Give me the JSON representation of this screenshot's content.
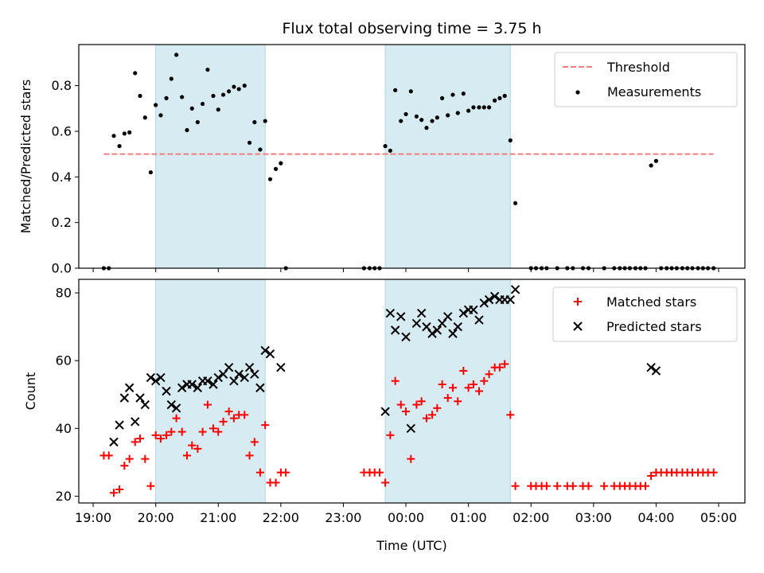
{
  "chart_data": [
    {
      "type": "scatter",
      "title": "Flux total observing time = 3.75 h",
      "xlabel": "",
      "ylabel": "Matched/Predicted stars",
      "xlim": [
        18.77,
        29.42
      ],
      "ylim": [
        0,
        0.98
      ],
      "yticks": [
        0.0,
        0.2,
        0.4,
        0.6,
        0.8
      ],
      "ytick_labels": [
        "0.0",
        "0.2",
        "0.4",
        "0.6",
        "0.8"
      ],
      "legend_position": "top-right",
      "shaded_regions": [
        [
          20.0,
          21.75
        ],
        [
          23.67,
          25.67
        ]
      ],
      "threshold": {
        "name": "Threshold",
        "value": 0.5,
        "x_range": [
          19.17,
          28.92
        ],
        "color": "#f07f7f"
      },
      "series": [
        {
          "name": "Measurements",
          "color": "#000000",
          "points": [
            [
              19.17,
              0.0
            ],
            [
              19.25,
              0.0
            ],
            [
              19.33,
              0.58
            ],
            [
              19.42,
              0.535
            ],
            [
              19.5,
              0.59
            ],
            [
              19.58,
              0.595
            ],
            [
              19.67,
              0.855
            ],
            [
              19.75,
              0.755
            ],
            [
              19.83,
              0.66
            ],
            [
              19.92,
              0.42
            ],
            [
              20.0,
              0.715
            ],
            [
              20.08,
              0.67
            ],
            [
              20.17,
              0.745
            ],
            [
              20.25,
              0.83
            ],
            [
              20.33,
              0.935
            ],
            [
              20.42,
              0.75
            ],
            [
              20.5,
              0.605
            ],
            [
              20.58,
              0.7
            ],
            [
              20.67,
              0.64
            ],
            [
              20.75,
              0.72
            ],
            [
              20.83,
              0.87
            ],
            [
              20.92,
              0.755
            ],
            [
              21.0,
              0.695
            ],
            [
              21.08,
              0.76
            ],
            [
              21.17,
              0.775
            ],
            [
              21.25,
              0.795
            ],
            [
              21.33,
              0.785
            ],
            [
              21.42,
              0.8
            ],
            [
              21.5,
              0.55
            ],
            [
              21.58,
              0.64
            ],
            [
              21.67,
              0.52
            ],
            [
              21.75,
              0.645
            ],
            [
              21.83,
              0.39
            ],
            [
              21.92,
              0.435
            ],
            [
              22.0,
              0.46
            ],
            [
              22.08,
              0.0
            ],
            [
              23.33,
              0.0
            ],
            [
              23.42,
              0.0
            ],
            [
              23.5,
              0.0
            ],
            [
              23.58,
              0.0
            ],
            [
              23.67,
              0.535
            ],
            [
              23.75,
              0.515
            ],
            [
              23.83,
              0.78
            ],
            [
              23.92,
              0.645
            ],
            [
              24.0,
              0.675
            ],
            [
              24.08,
              0.775
            ],
            [
              24.17,
              0.665
            ],
            [
              24.25,
              0.65
            ],
            [
              24.33,
              0.615
            ],
            [
              24.42,
              0.645
            ],
            [
              24.5,
              0.66
            ],
            [
              24.58,
              0.745
            ],
            [
              24.67,
              0.67
            ],
            [
              24.75,
              0.76
            ],
            [
              24.83,
              0.68
            ],
            [
              24.92,
              0.765
            ],
            [
              25.0,
              0.69
            ],
            [
              25.08,
              0.705
            ],
            [
              25.17,
              0.705
            ],
            [
              25.25,
              0.705
            ],
            [
              25.33,
              0.705
            ],
            [
              25.42,
              0.735
            ],
            [
              25.5,
              0.745
            ],
            [
              25.58,
              0.755
            ],
            [
              25.67,
              0.56
            ],
            [
              25.75,
              0.285
            ],
            [
              26.0,
              0.0
            ],
            [
              26.08,
              0.0
            ],
            [
              26.17,
              0.0
            ],
            [
              26.25,
              0.0
            ],
            [
              26.42,
              0.0
            ],
            [
              26.58,
              0.0
            ],
            [
              26.67,
              0.0
            ],
            [
              26.83,
              0.0
            ],
            [
              26.92,
              0.0
            ],
            [
              27.17,
              0.0
            ],
            [
              27.33,
              0.0
            ],
            [
              27.42,
              0.0
            ],
            [
              27.5,
              0.0
            ],
            [
              27.58,
              0.0
            ],
            [
              27.67,
              0.0
            ],
            [
              27.75,
              0.0
            ],
            [
              27.83,
              0.0
            ],
            [
              27.92,
              0.45
            ],
            [
              28.0,
              0.47
            ],
            [
              28.08,
              0.0
            ],
            [
              28.17,
              0.0
            ],
            [
              28.25,
              0.0
            ],
            [
              28.33,
              0.0
            ],
            [
              28.42,
              0.0
            ],
            [
              28.5,
              0.0
            ],
            [
              28.58,
              0.0
            ],
            [
              28.67,
              0.0
            ],
            [
              28.75,
              0.0
            ],
            [
              28.83,
              0.0
            ],
            [
              28.92,
              0.0
            ]
          ]
        }
      ]
    },
    {
      "type": "scatter",
      "title": "",
      "xlabel": "Time (UTC)",
      "ylabel": "Count",
      "xlim": [
        18.77,
        29.42
      ],
      "ylim": [
        18,
        84
      ],
      "yticks": [
        20,
        40,
        60,
        80
      ],
      "ytick_labels": [
        "20",
        "40",
        "60",
        "80"
      ],
      "xticks": [
        19,
        20,
        21,
        22,
        23,
        24,
        25,
        26,
        27,
        28,
        29
      ],
      "xtick_labels": [
        "19:00",
        "20:00",
        "21:00",
        "22:00",
        "23:00",
        "00:00",
        "01:00",
        "02:00",
        "03:00",
        "04:00",
        "05:00"
      ],
      "legend_position": "top-right",
      "shaded_regions": [
        [
          20.0,
          21.75
        ],
        [
          23.67,
          25.67
        ]
      ],
      "series": [
        {
          "name": "Matched stars",
          "marker": "plus",
          "color": "#ff0000",
          "points": [
            [
              19.17,
              32
            ],
            [
              19.25,
              32
            ],
            [
              19.33,
              21
            ],
            [
              19.42,
              22
            ],
            [
              19.5,
              29
            ],
            [
              19.58,
              31
            ],
            [
              19.67,
              36
            ],
            [
              19.75,
              37
            ],
            [
              19.83,
              31
            ],
            [
              19.92,
              23
            ],
            [
              20.0,
              38
            ],
            [
              20.08,
              37
            ],
            [
              20.17,
              38
            ],
            [
              20.25,
              39
            ],
            [
              20.33,
              43
            ],
            [
              20.42,
              39
            ],
            [
              20.5,
              32
            ],
            [
              20.58,
              35
            ],
            [
              20.67,
              34
            ],
            [
              20.75,
              39
            ],
            [
              20.83,
              47
            ],
            [
              20.92,
              40
            ],
            [
              21.0,
              39
            ],
            [
              21.08,
              42
            ],
            [
              21.17,
              45
            ],
            [
              21.25,
              43
            ],
            [
              21.33,
              44
            ],
            [
              21.42,
              44
            ],
            [
              21.5,
              32
            ],
            [
              21.58,
              36
            ],
            [
              21.67,
              27
            ],
            [
              21.75,
              41
            ],
            [
              21.83,
              24
            ],
            [
              21.92,
              24
            ],
            [
              22.0,
              27
            ],
            [
              22.08,
              27
            ],
            [
              23.33,
              27
            ],
            [
              23.42,
              27
            ],
            [
              23.5,
              27
            ],
            [
              23.58,
              27
            ],
            [
              23.67,
              24
            ],
            [
              23.75,
              38
            ],
            [
              23.83,
              54
            ],
            [
              23.92,
              47
            ],
            [
              24.0,
              45
            ],
            [
              24.08,
              31
            ],
            [
              24.17,
              47
            ],
            [
              24.25,
              48
            ],
            [
              24.33,
              43
            ],
            [
              24.42,
              44
            ],
            [
              24.5,
              46
            ],
            [
              24.58,
              53
            ],
            [
              24.67,
              49
            ],
            [
              24.75,
              52
            ],
            [
              24.83,
              48
            ],
            [
              24.92,
              57
            ],
            [
              25.0,
              52
            ],
            [
              25.08,
              53
            ],
            [
              25.17,
              51
            ],
            [
              25.25,
              54
            ],
            [
              25.33,
              56
            ],
            [
              25.42,
              58
            ],
            [
              25.5,
              58
            ],
            [
              25.58,
              59
            ],
            [
              25.67,
              44
            ],
            [
              25.75,
              23
            ],
            [
              26.0,
              23
            ],
            [
              26.08,
              23
            ],
            [
              26.17,
              23
            ],
            [
              26.25,
              23
            ],
            [
              26.42,
              23
            ],
            [
              26.58,
              23
            ],
            [
              26.67,
              23
            ],
            [
              26.83,
              23
            ],
            [
              26.92,
              23
            ],
            [
              27.17,
              23
            ],
            [
              27.33,
              23
            ],
            [
              27.42,
              23
            ],
            [
              27.5,
              23
            ],
            [
              27.58,
              23
            ],
            [
              27.67,
              23
            ],
            [
              27.75,
              23
            ],
            [
              27.83,
              23
            ],
            [
              27.92,
              26
            ],
            [
              28.0,
              27
            ],
            [
              28.08,
              27
            ],
            [
              28.17,
              27
            ],
            [
              28.25,
              27
            ],
            [
              28.33,
              27
            ],
            [
              28.42,
              27
            ],
            [
              28.5,
              27
            ],
            [
              28.58,
              27
            ],
            [
              28.67,
              27
            ],
            [
              28.75,
              27
            ],
            [
              28.83,
              27
            ],
            [
              28.92,
              27
            ]
          ]
        },
        {
          "name": "Predicted stars",
          "marker": "x",
          "color": "#000000",
          "points": [
            [
              19.33,
              36
            ],
            [
              19.42,
              41
            ],
            [
              19.5,
              49
            ],
            [
              19.58,
              52
            ],
            [
              19.67,
              42
            ],
            [
              19.75,
              49
            ],
            [
              19.83,
              47
            ],
            [
              19.92,
              55
            ],
            [
              20.0,
              54
            ],
            [
              20.08,
              55
            ],
            [
              20.17,
              51
            ],
            [
              20.25,
              47
            ],
            [
              20.33,
              46
            ],
            [
              20.42,
              52
            ],
            [
              20.5,
              53
            ],
            [
              20.58,
              53
            ],
            [
              20.67,
              52
            ],
            [
              20.75,
              54
            ],
            [
              20.83,
              54
            ],
            [
              20.92,
              53
            ],
            [
              21.0,
              55
            ],
            [
              21.08,
              56
            ],
            [
              21.17,
              58
            ],
            [
              21.25,
              54
            ],
            [
              21.33,
              56
            ],
            [
              21.42,
              55
            ],
            [
              21.5,
              58
            ],
            [
              21.58,
              56
            ],
            [
              21.67,
              52
            ],
            [
              21.75,
              63
            ],
            [
              21.83,
              62
            ],
            [
              22.0,
              58
            ],
            [
              23.67,
              45
            ],
            [
              23.75,
              74
            ],
            [
              23.83,
              69
            ],
            [
              23.92,
              73
            ],
            [
              24.0,
              67
            ],
            [
              24.08,
              40
            ],
            [
              24.17,
              71
            ],
            [
              24.25,
              74
            ],
            [
              24.33,
              70
            ],
            [
              24.42,
              68
            ],
            [
              24.5,
              69
            ],
            [
              24.58,
              71
            ],
            [
              24.67,
              73
            ],
            [
              24.75,
              68
            ],
            [
              24.83,
              70
            ],
            [
              24.92,
              74
            ],
            [
              25.0,
              75
            ],
            [
              25.08,
              75
            ],
            [
              25.17,
              72
            ],
            [
              25.25,
              77
            ],
            [
              25.33,
              78
            ],
            [
              25.42,
              79
            ],
            [
              25.5,
              78
            ],
            [
              25.58,
              78
            ],
            [
              25.67,
              78
            ],
            [
              25.75,
              81
            ],
            [
              27.92,
              58
            ],
            [
              28.0,
              57
            ]
          ]
        }
      ]
    }
  ]
}
